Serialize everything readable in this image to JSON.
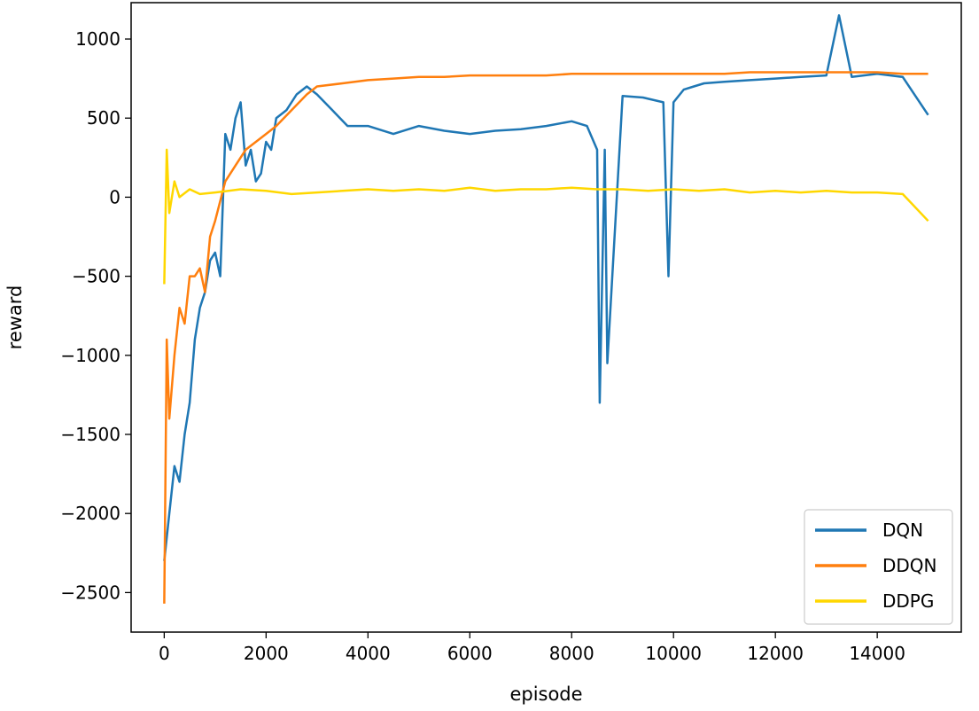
{
  "chart_data": {
    "type": "line",
    "title": "",
    "xlabel": "episode",
    "ylabel": "reward",
    "xlim": [
      -650,
      15650
    ],
    "ylim": [
      -2750,
      1230
    ],
    "x_ticks": [
      0,
      2000,
      4000,
      6000,
      8000,
      10000,
      12000,
      14000
    ],
    "x_tick_labels": [
      "0",
      "2000",
      "4000",
      "6000",
      "8000",
      "10000",
      "12000",
      "14000"
    ],
    "y_ticks": [
      -2500,
      -2000,
      -1500,
      -1000,
      -500,
      0,
      500,
      1000
    ],
    "y_tick_labels": [
      "−2500",
      "−2000",
      "−1500",
      "−1000",
      "−500",
      "0",
      "500",
      "1000"
    ],
    "grid": false,
    "legend_position": "lower-right",
    "series": [
      {
        "name": "DQN",
        "color": "#1f77b4",
        "x": [
          0,
          100,
          200,
          300,
          400,
          500,
          600,
          700,
          800,
          900,
          1000,
          1100,
          1200,
          1300,
          1400,
          1500,
          1600,
          1700,
          1800,
          1900,
          2000,
          2100,
          2200,
          2400,
          2600,
          2800,
          3000,
          3300,
          3600,
          4000,
          4500,
          5000,
          5500,
          6000,
          6500,
          7000,
          7500,
          8000,
          8300,
          8500,
          8550,
          8650,
          8700,
          9000,
          9400,
          9800,
          9900,
          10000,
          10200,
          10400,
          10600,
          11000,
          11500,
          12000,
          12500,
          13000,
          13250,
          13500,
          14000,
          14500,
          15000
        ],
        "y": [
          -2300,
          -2000,
          -1700,
          -1800,
          -1500,
          -1300,
          -900,
          -700,
          -600,
          -400,
          -350,
          -500,
          400,
          300,
          500,
          600,
          200,
          300,
          100,
          150,
          350,
          300,
          500,
          550,
          650,
          700,
          650,
          550,
          450,
          450,
          400,
          450,
          420,
          400,
          420,
          430,
          450,
          480,
          450,
          300,
          -1300,
          300,
          -1050,
          640,
          630,
          600,
          -500,
          600,
          680,
          700,
          720,
          730,
          740,
          750,
          760,
          770,
          1150,
          760,
          780,
          760,
          520
        ]
      },
      {
        "name": "DDQN",
        "color": "#ff7f0e",
        "x": [
          0,
          50,
          100,
          200,
          300,
          400,
          500,
          600,
          700,
          800,
          900,
          1000,
          1200,
          1400,
          1600,
          1800,
          2000,
          2200,
          2500,
          2800,
          3000,
          3500,
          4000,
          4500,
          5000,
          5500,
          6000,
          6500,
          7000,
          7500,
          8000,
          8500,
          9000,
          9500,
          10000,
          10500,
          11000,
          11500,
          12000,
          12500,
          13000,
          13500,
          14000,
          14500,
          15000
        ],
        "y": [
          -2570,
          -900,
          -1400,
          -1000,
          -700,
          -800,
          -500,
          -500,
          -450,
          -600,
          -250,
          -150,
          100,
          200,
          300,
          350,
          400,
          450,
          550,
          650,
          700,
          720,
          740,
          750,
          760,
          760,
          770,
          770,
          770,
          770,
          780,
          780,
          780,
          780,
          780,
          780,
          780,
          790,
          790,
          790,
          790,
          790,
          790,
          780,
          780
        ]
      },
      {
        "name": "DDPG",
        "color": "#ffd700",
        "x": [
          0,
          50,
          100,
          200,
          300,
          500,
          700,
          1000,
          1500,
          2000,
          2500,
          3000,
          3500,
          4000,
          4500,
          5000,
          5500,
          6000,
          6500,
          7000,
          7500,
          8000,
          8500,
          9000,
          9500,
          10000,
          10500,
          11000,
          11500,
          12000,
          12500,
          13000,
          13500,
          14000,
          14500,
          15000
        ],
        "y": [
          -550,
          300,
          -100,
          100,
          0,
          50,
          20,
          30,
          50,
          40,
          20,
          30,
          40,
          50,
          40,
          50,
          40,
          60,
          40,
          50,
          50,
          60,
          50,
          50,
          40,
          50,
          40,
          50,
          30,
          40,
          30,
          40,
          30,
          30,
          20,
          -150
        ]
      }
    ]
  }
}
